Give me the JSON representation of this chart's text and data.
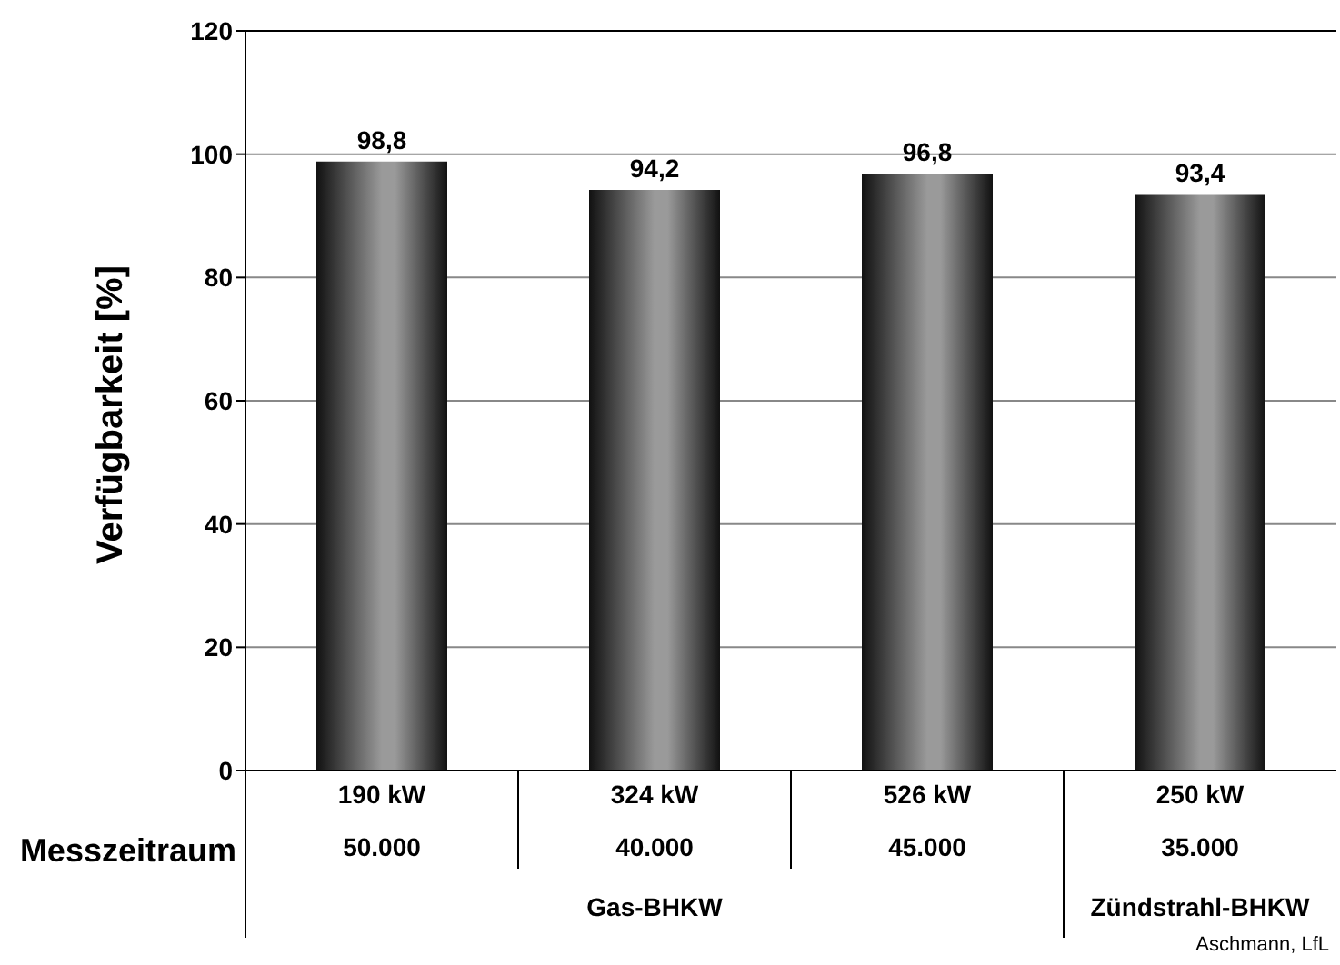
{
  "chart_data": {
    "type": "bar",
    "ylabel": "Verfügbarkeit [%]",
    "categories": [
      "190 kW",
      "324 kW",
      "526 kW",
      "250 kW"
    ],
    "values": [
      98.8,
      94.2,
      96.8,
      93.4
    ],
    "color": "#9a9a9a",
    "ylim": [
      0,
      120
    ],
    "yticks": [
      0,
      20,
      40,
      60,
      80,
      100,
      120
    ],
    "grid": "y",
    "data_labels": true,
    "value_labels": [
      "98,8",
      "94,2",
      "96,8",
      "93,4"
    ],
    "annotations": [
      "Messzeitraum",
      "50.000",
      "40.000",
      "45.000",
      "35.000",
      "Gas-BHKW",
      "Zündstrahl-BHKW",
      "Aschmann, LfL"
    ]
  }
}
